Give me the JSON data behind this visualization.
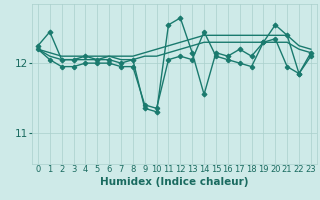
{
  "title": "",
  "xlabel": "Humidex (Indice chaleur)",
  "x_values": [
    0,
    1,
    2,
    3,
    4,
    5,
    6,
    7,
    8,
    9,
    10,
    11,
    12,
    13,
    14,
    15,
    16,
    17,
    18,
    19,
    20,
    21,
    22,
    23
  ],
  "lines": [
    {
      "y": [
        12.25,
        12.45,
        12.05,
        12.05,
        12.1,
        12.05,
        12.05,
        12.0,
        12.05,
        11.35,
        11.3,
        12.55,
        12.65,
        12.15,
        11.55,
        12.15,
        12.1,
        12.2,
        12.1,
        12.3,
        12.55,
        12.4,
        11.85,
        12.15
      ],
      "color": "#1a7a6e",
      "marker": "D",
      "markersize": 2.5,
      "linewidth": 1.0
    },
    {
      "y": [
        12.2,
        12.15,
        12.1,
        12.1,
        12.1,
        12.1,
        12.1,
        12.1,
        12.1,
        12.15,
        12.2,
        12.25,
        12.3,
        12.35,
        12.4,
        12.4,
        12.4,
        12.4,
        12.4,
        12.4,
        12.4,
        12.4,
        12.25,
        12.2
      ],
      "color": "#1a7a6e",
      "marker": null,
      "markersize": 0,
      "linewidth": 1.0
    },
    {
      "y": [
        12.2,
        12.1,
        12.05,
        12.05,
        12.05,
        12.05,
        12.1,
        12.05,
        12.05,
        12.1,
        12.1,
        12.15,
        12.2,
        12.25,
        12.3,
        12.3,
        12.3,
        12.3,
        12.3,
        12.3,
        12.3,
        12.3,
        12.2,
        12.15
      ],
      "color": "#1a7a6e",
      "marker": null,
      "markersize": 0,
      "linewidth": 1.0
    },
    {
      "y": [
        12.2,
        12.05,
        11.95,
        11.95,
        12.0,
        12.0,
        12.0,
        11.95,
        11.95,
        11.4,
        11.35,
        12.05,
        12.1,
        12.05,
        12.45,
        12.1,
        12.05,
        12.0,
        11.95,
        12.3,
        12.35,
        11.95,
        11.85,
        12.1
      ],
      "color": "#1a7a6e",
      "marker": "P",
      "markersize": 3,
      "linewidth": 1.0
    }
  ],
  "bg_color": "#ceeae8",
  "grid_color": "#aacfcc",
  "line_color": "#1a6b60",
  "yticks": [
    11,
    12
  ],
  "ylim": [
    10.55,
    12.85
  ],
  "xlim": [
    -0.5,
    23.5
  ],
  "xtick_fontsize": 6,
  "ytick_fontsize": 7.5,
  "xlabel_fontsize": 7.5
}
